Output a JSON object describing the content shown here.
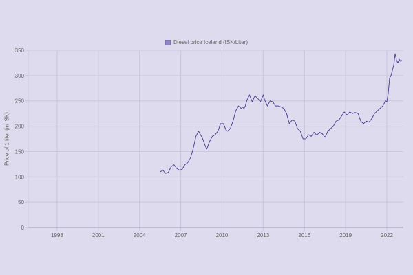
{
  "legend": {
    "label": "Diesel price Iceland (ISK/Liter)",
    "color": "#8f86c6"
  },
  "axes": {
    "ylabel": "Price of 1 liter (in ISK)",
    "yticks": [
      "0",
      "50",
      "100",
      "150",
      "200",
      "250",
      "300",
      "350"
    ],
    "xticks": [
      "1998",
      "2001",
      "2004",
      "2007",
      "2010",
      "2013",
      "2016",
      "2019",
      "2022"
    ]
  },
  "colors": {
    "background": "#dedbee",
    "line": "#4e4594",
    "grid": "#c9c5dc",
    "axis": "#a09bb8",
    "tick_text": "#666666"
  },
  "chart_data": {
    "type": "line",
    "title": "",
    "xlabel": "",
    "ylabel": "Price of 1 liter (in ISK)",
    "xlim": [
      1995.9,
      2023.2
    ],
    "ylim": [
      0,
      350
    ],
    "grid": true,
    "legend_position": "top",
    "series": [
      {
        "name": "Diesel price Iceland (ISK/Liter)",
        "x": [
          2005.5,
          2005.7,
          2005.9,
          2006.1,
          2006.3,
          2006.5,
          2006.7,
          2006.9,
          2007.1,
          2007.3,
          2007.5,
          2007.7,
          2007.9,
          2008.1,
          2008.3,
          2008.5,
          2008.6,
          2008.8,
          2008.9,
          2009.1,
          2009.3,
          2009.5,
          2009.7,
          2009.9,
          2010.1,
          2010.3,
          2010.4,
          2010.6,
          2010.8,
          2011.0,
          2011.2,
          2011.4,
          2011.5,
          2011.6,
          2011.7,
          2011.8,
          2012.0,
          2012.2,
          2012.4,
          2012.6,
          2012.8,
          2013.0,
          2013.1,
          2013.3,
          2013.5,
          2013.7,
          2013.9,
          2014.1,
          2014.3,
          2014.5,
          2014.7,
          2014.9,
          2015.1,
          2015.3,
          2015.5,
          2015.7,
          2015.9,
          2016.1,
          2016.3,
          2016.5,
          2016.7,
          2016.9,
          2017.1,
          2017.3,
          2017.5,
          2017.7,
          2017.9,
          2018.1,
          2018.3,
          2018.5,
          2018.7,
          2018.9,
          2019.1,
          2019.3,
          2019.5,
          2019.7,
          2019.9,
          2020.1,
          2020.3,
          2020.5,
          2020.7,
          2020.9,
          2021.1,
          2021.3,
          2021.5,
          2021.7,
          2021.9,
          2022.0,
          2022.1,
          2022.2,
          2022.3,
          2022.4,
          2022.5,
          2022.6,
          2022.7,
          2022.8,
          2022.9,
          2023.0,
          2023.1
        ],
        "values": [
          110,
          113,
          107,
          109,
          120,
          124,
          117,
          113,
          115,
          124,
          128,
          137,
          155,
          180,
          190,
          180,
          175,
          160,
          155,
          170,
          180,
          183,
          190,
          205,
          205,
          192,
          190,
          195,
          210,
          230,
          240,
          235,
          238,
          235,
          240,
          250,
          262,
          248,
          260,
          255,
          248,
          262,
          252,
          240,
          250,
          248,
          240,
          240,
          238,
          235,
          225,
          205,
          212,
          210,
          195,
          190,
          175,
          175,
          183,
          180,
          188,
          182,
          188,
          185,
          178,
          190,
          195,
          200,
          210,
          212,
          220,
          228,
          222,
          228,
          225,
          227,
          225,
          210,
          205,
          210,
          208,
          215,
          225,
          230,
          235,
          240,
          250,
          248,
          265,
          295,
          300,
          310,
          320,
          343,
          330,
          325,
          332,
          328,
          330
        ]
      }
    ]
  }
}
